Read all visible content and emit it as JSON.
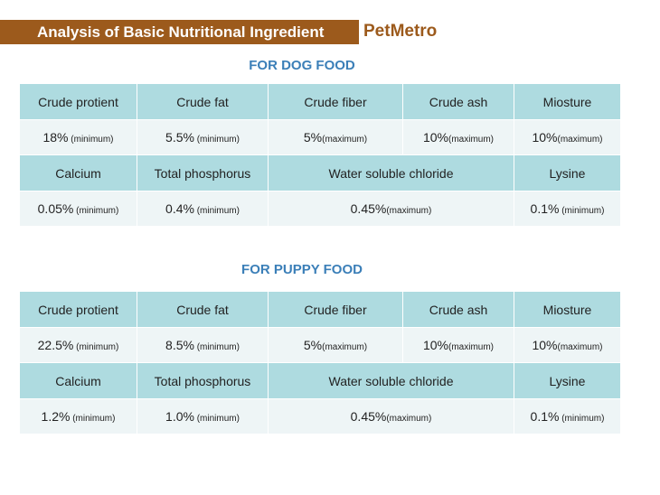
{
  "header": {
    "title": "Analysis of Basic Nutritional Ingredient",
    "brand": "PetMetro"
  },
  "dog": {
    "title": "FOR DOG FOOD",
    "row1_labels": [
      "Crude protient",
      "Crude fat",
      "Crude fiber",
      "Crude ash",
      "Miosture"
    ],
    "row1_values": [
      {
        "v": "18%",
        "q": " (minimum)"
      },
      {
        "v": "5.5%",
        "q": " (minimum)"
      },
      {
        "v": "5%",
        "q": "(maximum)"
      },
      {
        "v": "10%",
        "q": "(maximum)"
      },
      {
        "v": "10%",
        "q": "(maximum)"
      }
    ],
    "row2_labels": [
      "Calcium",
      "Total phosphorus",
      "Water soluble chloride",
      "Lysine"
    ],
    "row2_values": [
      {
        "v": "0.05%",
        "q": " (minimum)"
      },
      {
        "v": "0.4%",
        "q": " (minimum)"
      },
      {
        "v": "0.45%",
        "q": "(maximum)"
      },
      {
        "v": "0.1%",
        "q": " (minimum)"
      }
    ]
  },
  "puppy": {
    "title": "FOR PUPPY FOOD",
    "row1_labels": [
      "Crude protient",
      "Crude fat",
      "Crude fiber",
      "Crude ash",
      "Miosture"
    ],
    "row1_values": [
      {
        "v": "22.5%",
        "q": " (minimum)"
      },
      {
        "v": "8.5%",
        "q": " (minimum)"
      },
      {
        "v": "5%",
        "q": "(maximum)"
      },
      {
        "v": "10%",
        "q": "(maximum)"
      },
      {
        "v": "10%",
        "q": "(maximum)"
      }
    ],
    "row2_labels": [
      "Calcium",
      "Total phosphorus",
      "Water soluble chloride",
      "Lysine"
    ],
    "row2_values": [
      {
        "v": "1.2%",
        "q": " (minimum)"
      },
      {
        "v": "1.0%",
        "q": " (minimum)"
      },
      {
        "v": "0.45%",
        "q": "(maximum)"
      },
      {
        "v": "0.1%",
        "q": " (minimum)"
      }
    ]
  }
}
